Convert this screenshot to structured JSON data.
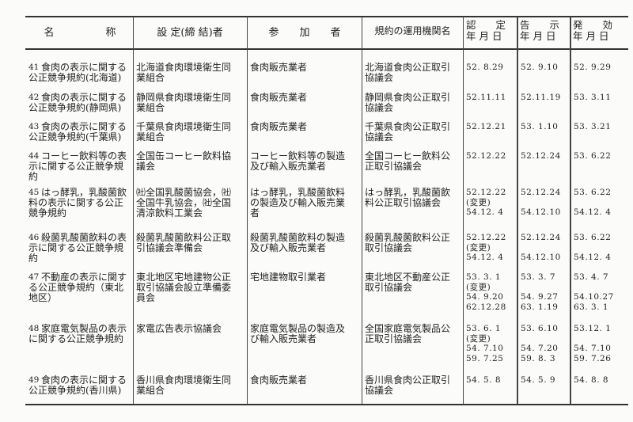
{
  "headers": {
    "name": "名　　　　　称",
    "setter": "設 定(締 結)者",
    "participant": "参　　加　　者",
    "operator": "規約の運用機関名",
    "approved_top": "認　　定",
    "approved_bottom": "年 月 日",
    "notified_top": "告　　示",
    "notified_bottom": "年 月 日",
    "effective_top": "発　　効",
    "effective_bottom": "年 月 日"
  },
  "rows": [
    {
      "no": "41",
      "name": "食肉の表示に関する\n公正競争規約(北海道)",
      "setter": "北海道食肉環境衛生同\n業組合",
      "participant": "食肉販売業者",
      "operator": "北海道食肉公正取引\n協議会",
      "approved": "52. 8.29",
      "notified": "52. 9.10",
      "effective": "52. 9.29"
    },
    {
      "no": "42",
      "name": "食肉の表示に関する\n公正競争規約(静岡県)",
      "setter": "静岡県食肉環境衛生同\n業組合",
      "participant": "食肉販売業者",
      "operator": "静岡県食肉公正取引\n協議会",
      "approved": "52.11.11",
      "notified": "52.11.19",
      "effective": "53. 3.11"
    },
    {
      "no": "43",
      "name": "食肉の表示に関する\n公正競争規約(千葉県)",
      "setter": "千葉県食肉環境衛生同\n業組合",
      "participant": "食肉販売業者",
      "operator": "千葉県食肉公正取引\n協議会",
      "approved": "52.12.21",
      "notified": "53. 1.10",
      "effective": "53. 3.21"
    },
    {
      "no": "44",
      "name": "コーヒー飲料等の表\n示に関する公正競争規\n約",
      "setter": "全国缶コーヒー飲料協\n議会",
      "participant": "コーヒー飲料等の製造\n及び輸入販売業者",
      "operator": "全国コーヒー飲料公\n正取引協議会",
      "approved": "52.12.22",
      "notified": "52.12.24",
      "effective": "53. 6.22"
    },
    {
      "no": "45",
      "name": "はっ酵乳，乳酸菌飲\n料の表示に関する公正\n競争規約",
      "setter": "㈳全国乳酸菌協会，㈳\n全国牛乳協会，㈳全国\n清涼飲料工業会",
      "participant": "はっ酵乳，乳酸菌飲料\nの製造及び輸入販売業\n者",
      "operator": "はっ酵乳，乳酸菌飲\n料公正取引協議会",
      "approved": "52.12.22\n(変更)\n54.12. 4",
      "notified": "52.12.24\n\n54.12.10",
      "effective": "53. 6.22\n\n54.12. 4"
    },
    {
      "no": "46",
      "name": "殺菌乳酸菌飲料の表\n示に関する公正競争規\n約",
      "setter": "殺菌乳酸菌飲料公正取\n引協議会準備会",
      "participant": "殺菌乳酸菌飲料の製造\n及び輸入販売業者",
      "operator": "殺菌乳酸菌飲料公正\n取引協議会",
      "approved": "52.12.22\n(変更)\n54.12. 4",
      "notified": "52.12.24\n\n54.12.10",
      "effective": "53. 6.22\n\n54.12. 4"
    },
    {
      "no": "47",
      "name": "不動産の表示に関す\nる公正競争規約（東北\n地区）",
      "setter": "東北地区宅地建物公正\n取引協議会設立準備委\n員会",
      "participant": "宅地建物取引業者",
      "operator": "東北地区不動産公正\n取引協議会",
      "approved": "53. 3. 1\n(変更)\n54. 9.20\n62.12.28",
      "notified": "53. 3. 7\n\n54. 9.27\n63. 1.19",
      "effective": "53. 4. 7\n\n54.10.27\n63. 3. 1"
    },
    {
      "no": "48",
      "name": "家庭電気製品の表示\nに関する公正競争規約",
      "setter": "家電広告表示協議会",
      "participant": "家庭電気製品の製造及\nび輸入販売業者",
      "operator": "全国家庭電気製品公\n正取引協議会",
      "approved": "53. 6. 1\n(変更)\n54. 7.10\n59. 7.25",
      "notified": "53. 6.10\n\n54. 7.20\n59. 8. 3",
      "effective": "53.12. 1\n\n54. 7.10\n59. 7.26"
    },
    {
      "no": "49",
      "name": "食肉の表示に関する\n公正競争規約(香川県)",
      "setter": "香川県食肉環境衛生同\n業組合",
      "participant": "食肉販売業者",
      "operator": "香川県食肉公正取引\n協議会",
      "approved": "54. 5. 8",
      "notified": "54. 5. 9",
      "effective": "54. 8. 8"
    }
  ]
}
